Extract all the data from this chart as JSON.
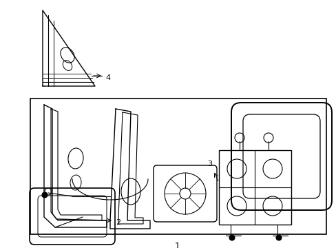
{
  "bg": "#ffffff",
  "lc": "#000000",
  "fig_w": 4.89,
  "fig_h": 3.6,
  "dpi": 100
}
